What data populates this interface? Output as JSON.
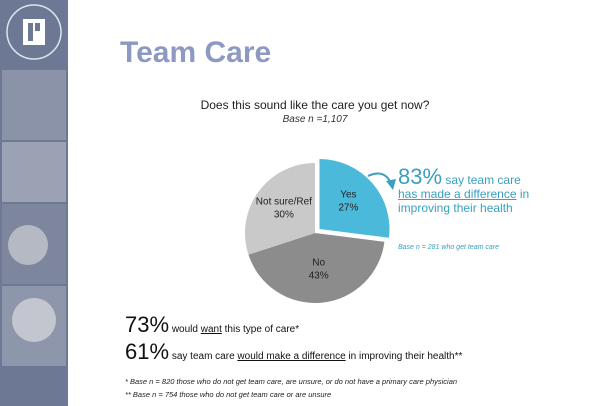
{
  "chart_data": {
    "type": "pie",
    "title": "Team Care",
    "question": "Does this sound like the care you get now?",
    "base": "Base n =1,107",
    "categories": [
      "Yes",
      "No",
      "Not sure/Ref"
    ],
    "values": [
      27,
      43,
      30
    ],
    "value_labels": [
      "27%",
      "43%",
      "30%"
    ],
    "colors": [
      "#4bb9da",
      "#8c8c8c",
      "#c9c9c9"
    ],
    "exploded": [
      true,
      false,
      false
    ],
    "callout": {
      "stat": "83%",
      "parts": [
        "say team care ",
        "has made a difference",
        " in improving their health"
      ],
      "base": "Base n = 281 who get team care"
    },
    "findings": [
      {
        "stat": "73%",
        "parts": [
          "would ",
          "want",
          " this type of care*"
        ]
      },
      {
        "stat": "61%",
        "parts": [
          "say team care ",
          "would make a difference",
          " in improving their health**"
        ]
      }
    ],
    "footnotes": [
      "* Base n = 820 those who do not get team care, are unsure, or do not have a primary care physician",
      "** Base n = 754 those who do not get team care or are unsure"
    ]
  }
}
